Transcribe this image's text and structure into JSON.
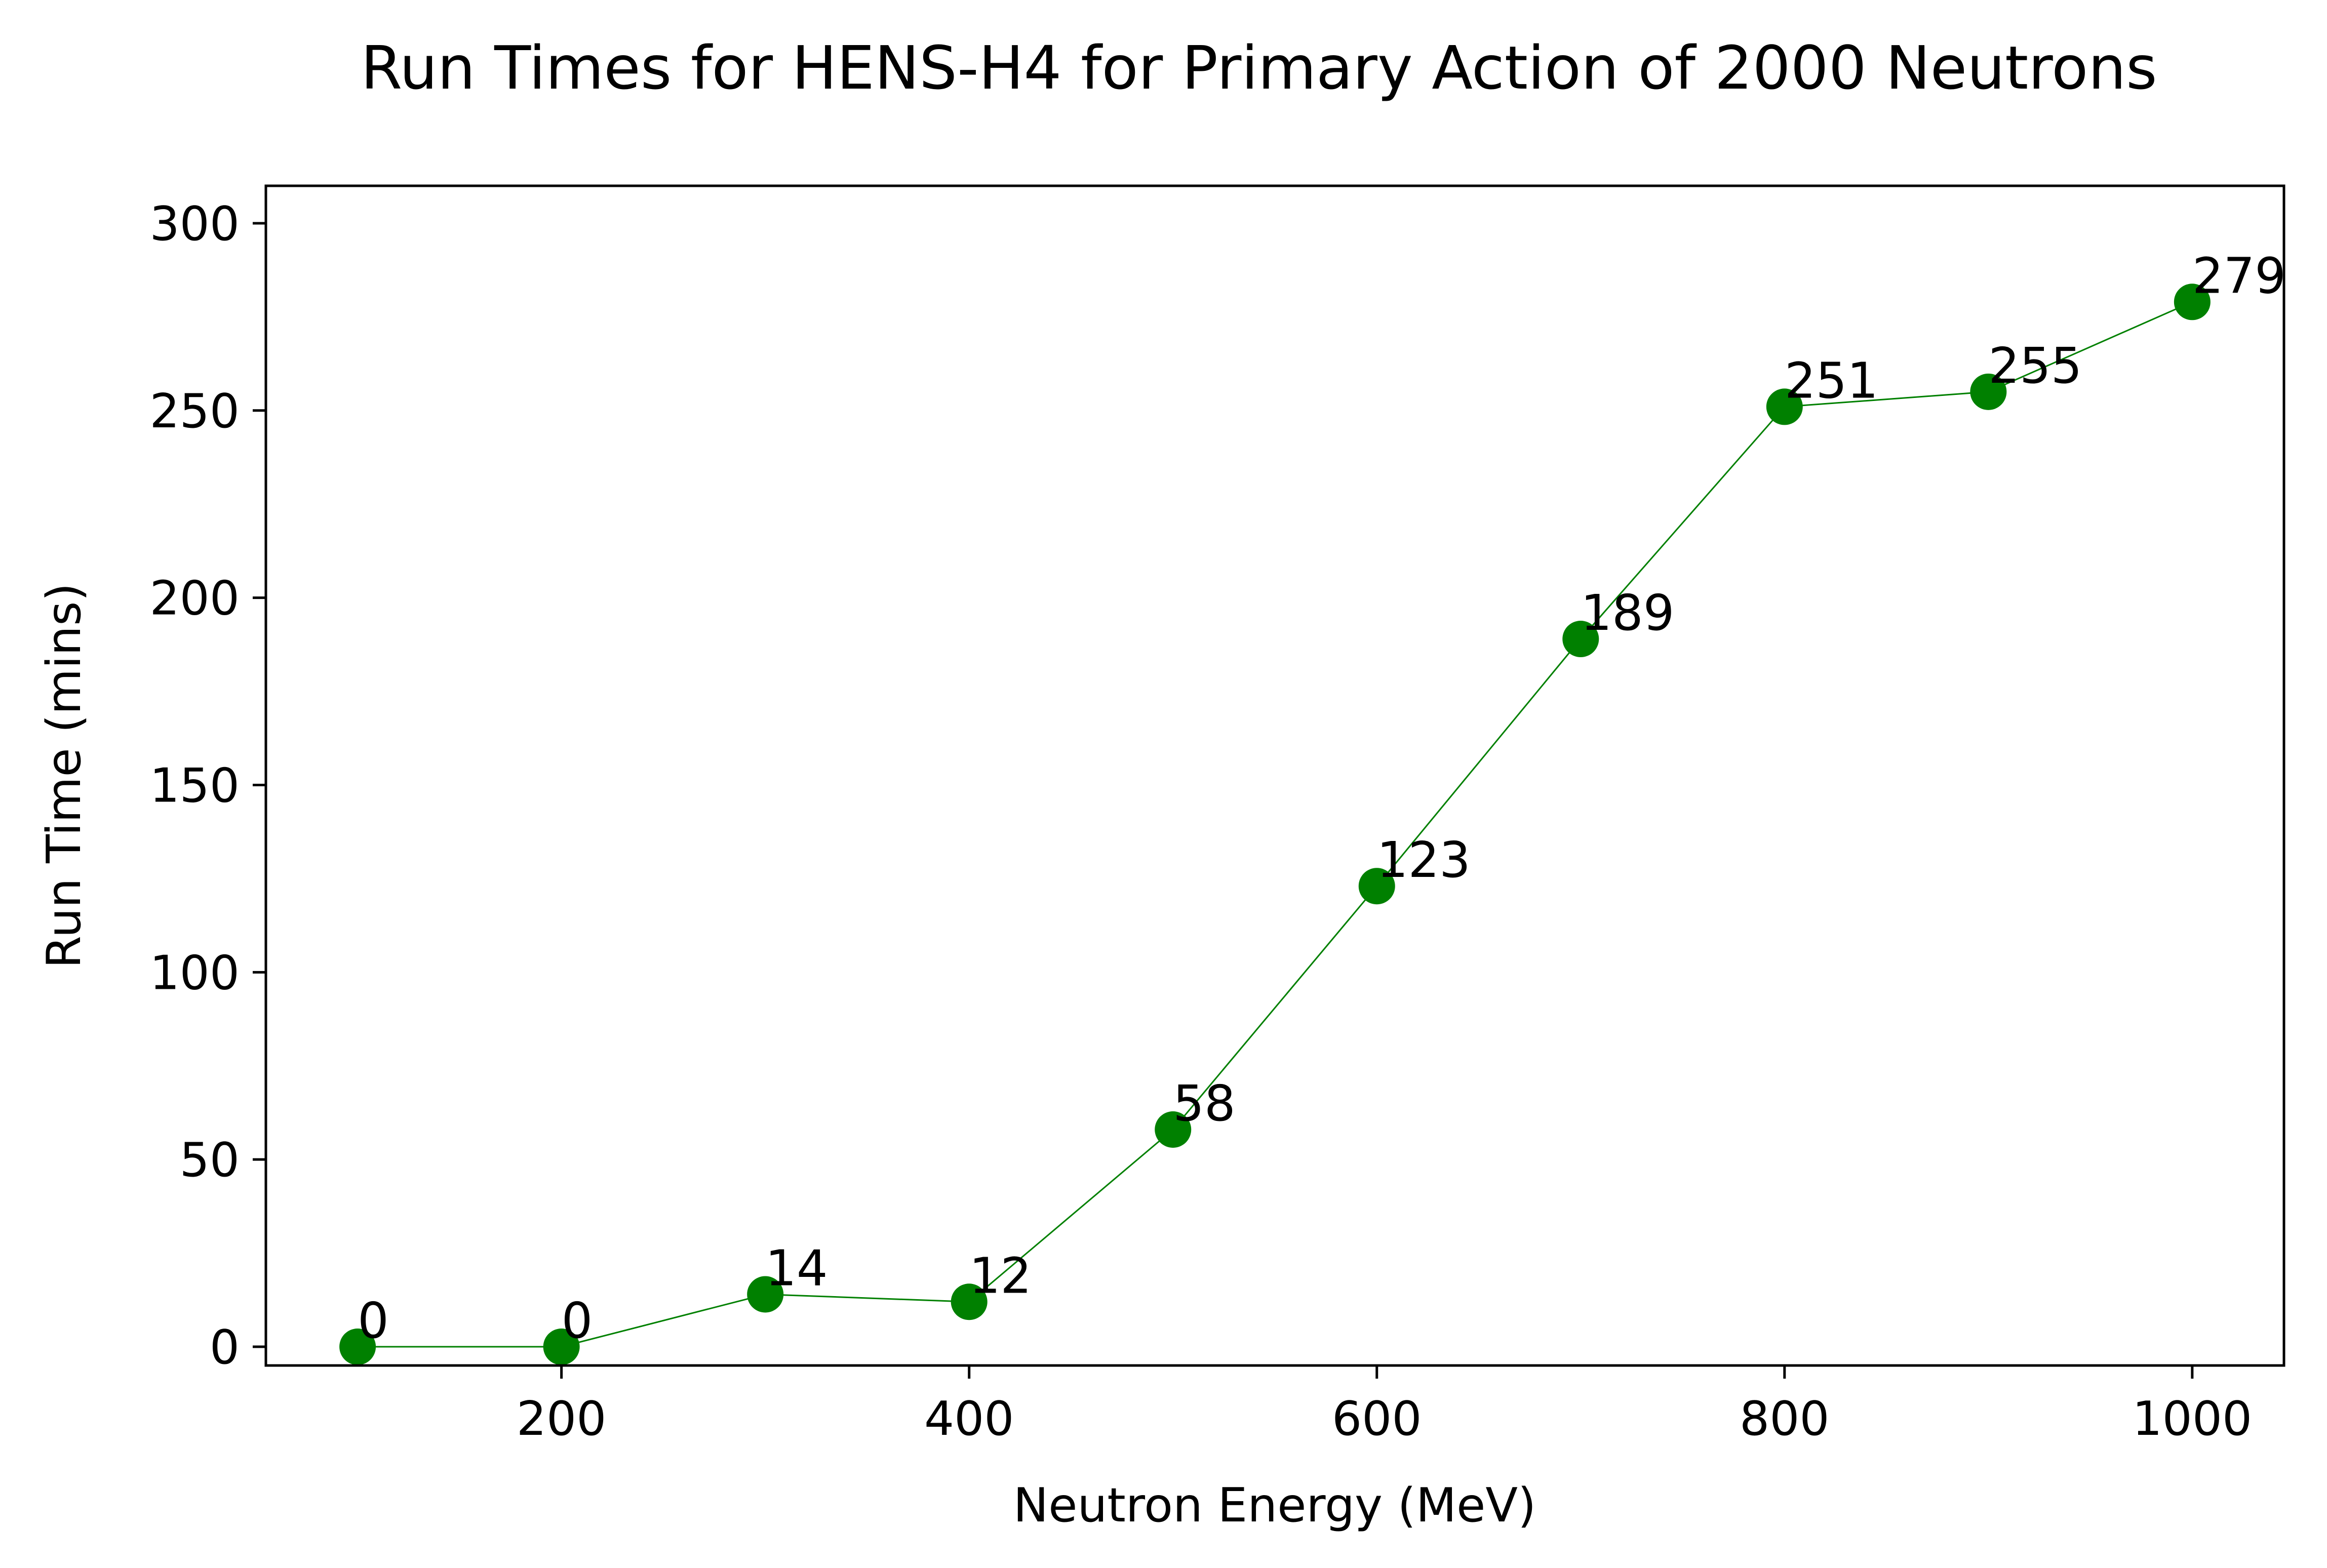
{
  "chart_data": {
    "type": "line",
    "title": "Run Times for HENS-H4 for Primary Action of 2000 Neutrons",
    "xlabel": "Neutron Energy (MeV)",
    "ylabel": "Run Time (mins)",
    "x": [
      100,
      200,
      300,
      400,
      500,
      600,
      700,
      800,
      900,
      1000
    ],
    "y": [
      0,
      0,
      14,
      12,
      58,
      123,
      189,
      251,
      255,
      279
    ],
    "point_labels": [
      "0",
      "0",
      "14",
      "12",
      "58",
      "123",
      "189",
      "251",
      "255",
      "279"
    ],
    "xlim": [
      55,
      1045
    ],
    "ylim": [
      -5,
      310
    ],
    "xticks": [
      200,
      400,
      600,
      800,
      1000
    ],
    "xtick_labels": [
      "200",
      "400",
      "600",
      "800",
      "1000"
    ],
    "yticks": [
      0,
      50,
      100,
      150,
      200,
      250,
      300
    ],
    "ytick_labels": [
      "0",
      "50",
      "100",
      "150",
      "200",
      "250",
      "300"
    ],
    "grid": false,
    "marker": "circle",
    "color": "#008000"
  }
}
